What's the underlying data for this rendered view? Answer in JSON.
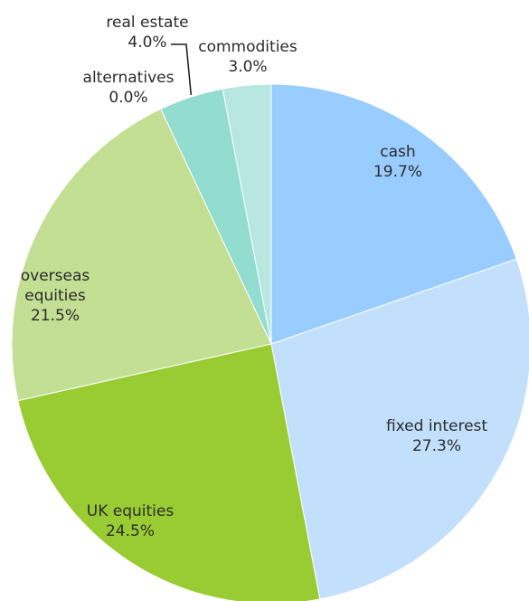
{
  "chart_data": {
    "type": "pie",
    "start": "12 o'clock",
    "direction": "clockwise",
    "slices": [
      {
        "label": [
          "cash"
        ],
        "percent_label": "19.7%",
        "value": 19.7,
        "color": "#99ccff"
      },
      {
        "label": [
          "fixed interest"
        ],
        "percent_label": "27.3%",
        "value": 27.3,
        "color": "#c2e0fc"
      },
      {
        "label": [
          "UK equities"
        ],
        "percent_label": "24.5%",
        "value": 24.5,
        "color": "#99cc33"
      },
      {
        "label": [
          "overseas",
          "equities"
        ],
        "percent_label": "21.5%",
        "value": 21.5,
        "color": "#c2df94"
      },
      {
        "label": [
          "alternatives"
        ],
        "percent_label": "0.0%",
        "value": 0.0,
        "color": "#6fd1bd"
      },
      {
        "label": [
          "real estate"
        ],
        "percent_label": "4.0%",
        "value": 4.0,
        "color": "#93dcd0"
      },
      {
        "label": [
          "commodities"
        ],
        "percent_label": "3.0%",
        "value": 3.0,
        "color": "#b8e7e1"
      }
    ]
  }
}
